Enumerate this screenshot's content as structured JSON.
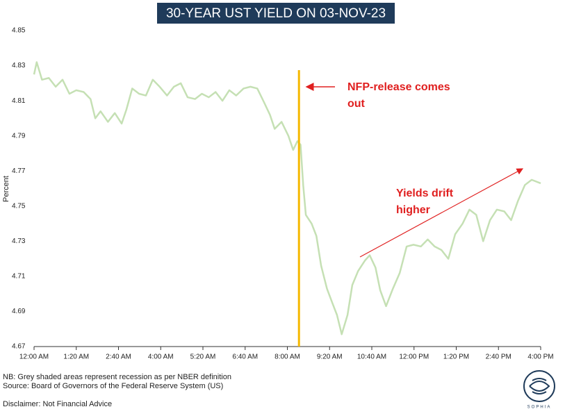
{
  "chart_data": {
    "type": "line",
    "title": "30-YEAR UST YIELD ON 03-NOV-23",
    "y_label": "Percent",
    "x": [
      0,
      5,
      15,
      28,
      41,
      54,
      67,
      80,
      94,
      107,
      116,
      126,
      140,
      153,
      166,
      175,
      186,
      199,
      212,
      225,
      238,
      252,
      265,
      278,
      291,
      305,
      318,
      331,
      344,
      357,
      370,
      383,
      397,
      410,
      423,
      436,
      447,
      456,
      469,
      482,
      491,
      499,
      505,
      510,
      515,
      526,
      535,
      544,
      555,
      565,
      574,
      583,
      594,
      603,
      614,
      627,
      636,
      647,
      656,
      667,
      680,
      693,
      706,
      719,
      733,
      746,
      759,
      772,
      785,
      798,
      812,
      825,
      838,
      851,
      864,
      877,
      891,
      904,
      917,
      930,
      943,
      960
    ],
    "series": [
      {
        "color": "#c5e0b4",
        "values": [
          4.825,
          4.832,
          4.822,
          4.823,
          4.818,
          4.822,
          4.814,
          4.816,
          4.815,
          4.811,
          4.8,
          4.804,
          4.798,
          4.803,
          4.797,
          4.805,
          4.817,
          4.814,
          4.813,
          4.822,
          4.818,
          4.813,
          4.818,
          4.82,
          4.812,
          4.811,
          4.814,
          4.812,
          4.815,
          4.81,
          4.816,
          4.813,
          4.817,
          4.818,
          4.817,
          4.809,
          4.802,
          4.794,
          4.798,
          4.79,
          4.782,
          4.787,
          4.785,
          4.762,
          4.745,
          4.74,
          4.733,
          4.716,
          4.703,
          4.695,
          4.688,
          4.677,
          4.688,
          4.705,
          4.713,
          4.719,
          4.722,
          4.715,
          4.702,
          4.693,
          4.703,
          4.712,
          4.727,
          4.728,
          4.727,
          4.731,
          4.727,
          4.725,
          4.72,
          4.734,
          4.74,
          4.748,
          4.745,
          4.73,
          4.742,
          4.748,
          4.747,
          4.742,
          4.753,
          4.762,
          4.765,
          4.763
        ]
      }
    ],
    "xlim": [
      0,
      960
    ],
    "xticks": [
      {
        "value": 0,
        "label": "12:00 AM"
      },
      {
        "value": 80,
        "label": "1:20 AM"
      },
      {
        "value": 160,
        "label": "2:40 AM"
      },
      {
        "value": 240,
        "label": "4:00 AM"
      },
      {
        "value": 320,
        "label": "5:20 AM"
      },
      {
        "value": 400,
        "label": "6:40 AM"
      },
      {
        "value": 480,
        "label": "8:00 AM"
      },
      {
        "value": 560,
        "label": "9:20 AM"
      },
      {
        "value": 640,
        "label": "10:40 AM"
      },
      {
        "value": 720,
        "label": "12:00 PM"
      },
      {
        "value": 800,
        "label": "1:20 PM"
      },
      {
        "value": 880,
        "label": "2:40 PM"
      },
      {
        "value": 960,
        "label": "4:00 PM"
      }
    ],
    "ylim": [
      4.67,
      4.85
    ],
    "yticks": [
      4.67,
      4.69,
      4.71,
      4.73,
      4.75,
      4.77,
      4.79,
      4.81,
      4.83,
      4.85
    ],
    "grid": false,
    "event_line": {
      "x": 502,
      "color": "#f5b800"
    },
    "annotations": [
      {
        "lines": [
          "NFP-release comes",
          "out"
        ],
        "color": "#e02020"
      },
      {
        "lines": [
          "Yields drift",
          "higher"
        ],
        "color": "#e02020"
      }
    ],
    "notes": [
      "NB: Grey shaded areas represent recession as per NBER definition",
      "Source: Board of Governors of the Federal Reserve System (US)",
      "Disclaimer: Not Financial Advice"
    ],
    "logo_text": "SOPHIA"
  }
}
